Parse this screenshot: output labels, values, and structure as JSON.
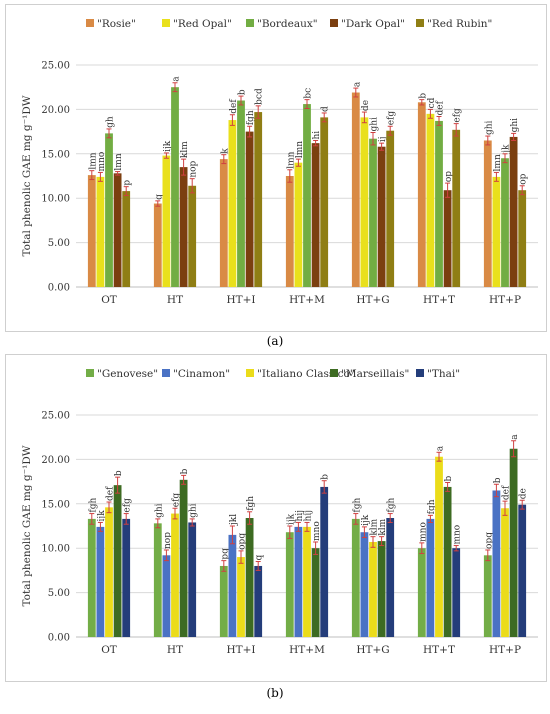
{
  "charts": [
    {
      "id": "a",
      "caption": "(a)",
      "colors": [
        "#d98a45",
        "#e9e01c",
        "#72ad43",
        "#7b3f10",
        "#8f7e14"
      ],
      "chart_data": {
        "type": "bar",
        "title": "",
        "xlabel": "",
        "ylabel": "Total phenolic GAE mg g⁻¹DW",
        "ylim": [
          0,
          25
        ],
        "yticks": [
          "0.00",
          "5.00",
          "10.00",
          "15.00",
          "20.00",
          "25.00"
        ],
        "grid": true,
        "legend_position": "top",
        "categories": [
          "OT",
          "HT",
          "HT+I",
          "HT+M",
          "HT+G",
          "HT+T",
          "HT+P"
        ],
        "series": [
          {
            "name": "\"Rosie\"",
            "values": [
              12.6,
              9.4,
              14.4,
              12.5,
              21.9,
              20.8,
              16.5
            ],
            "errors": [
              0.5,
              0.3,
              0.5,
              0.7,
              0.5,
              0.3,
              0.5
            ],
            "labels": [
              "lmn",
              "q",
              "k",
              "lmn",
              "a",
              "b",
              "ghi"
            ]
          },
          {
            "name": "\"Red Opal\"",
            "values": [
              12.4,
              14.8,
              18.8,
              14.0,
              19.1,
              19.5,
              12.4
            ],
            "errors": [
              0.5,
              0.3,
              0.6,
              0.4,
              0.6,
              0.5,
              0.5
            ],
            "labels": [
              "mno",
              "ijk",
              "def",
              "lmn",
              "de",
              "cd",
              "lmn"
            ]
          },
          {
            "name": "\"Bordeaux\"",
            "values": [
              17.3,
              22.5,
              21.0,
              20.6,
              16.7,
              18.7,
              14.5
            ],
            "errors": [
              0.5,
              0.5,
              0.5,
              0.5,
              0.7,
              0.5,
              0.5
            ],
            "labels": [
              "gh",
              "a",
              "b",
              "bc",
              "ghi",
              "def",
              "jk"
            ]
          },
          {
            "name": "\"Dark Opal\"",
            "values": [
              12.8,
              13.5,
              17.5,
              16.2,
              15.8,
              10.9,
              16.9
            ],
            "errors": [
              0.2,
              0.9,
              0.6,
              0.3,
              0.4,
              0.8,
              0.4
            ],
            "labels": [
              "lmn",
              "klm",
              "fgh",
              "hi",
              "ij",
              "op",
              "ghi"
            ]
          },
          {
            "name": "\"Red Rubin\"",
            "values": [
              10.8,
              11.4,
              19.7,
              19.1,
              17.6,
              17.7,
              10.9
            ],
            "errors": [
              0.5,
              0.8,
              0.7,
              0.5,
              0.5,
              0.7,
              0.5
            ],
            "labels": [
              "p",
              "nop",
              "bcd",
              "d",
              "efg",
              "efg",
              "op"
            ]
          }
        ]
      }
    },
    {
      "id": "b",
      "caption": "(b)",
      "colors": [
        "#73ad47",
        "#4a72c4",
        "#ebdc1a",
        "#3d6b22",
        "#243d7a"
      ],
      "chart_data": {
        "type": "bar",
        "title": "",
        "xlabel": "",
        "ylabel": "Total phenolic GAE mg g⁻¹DW",
        "ylim": [
          0,
          25
        ],
        "yticks": [
          "0.00",
          "5.00",
          "10.00",
          "15.00",
          "20.00",
          "25.00"
        ],
        "grid": true,
        "legend_position": "top",
        "categories": [
          "OT",
          "HT",
          "HT+I",
          "HT+M",
          "HT+G",
          "HT+T",
          "HT+P"
        ],
        "series": [
          {
            "name": "\"Genovese\"",
            "values": [
              13.3,
              12.8,
              8.0,
              11.8,
              13.3,
              10.0,
              9.2
            ],
            "errors": [
              0.6,
              0.5,
              0.6,
              0.7,
              0.6,
              0.6,
              0.6
            ],
            "labels": [
              "fgh",
              "ghi",
              "pq",
              "ijk",
              "fgh",
              "mno",
              "opq"
            ]
          },
          {
            "name": "\"Cinamon\"",
            "values": [
              12.4,
              9.2,
              11.5,
              12.4,
              11.8,
              13.3,
              16.5
            ],
            "errors": [
              0.5,
              0.6,
              1.0,
              0.5,
              0.6,
              0.4,
              0.7
            ],
            "labels": [
              "ijk",
              "nop",
              "jkl",
              "hij",
              "ijk",
              "fgh",
              "b"
            ]
          },
          {
            "name": "\"Italiano Classico\"",
            "values": [
              14.6,
              13.9,
              9.0,
              12.4,
              10.7,
              20.3,
              14.5
            ],
            "errors": [
              0.6,
              0.6,
              0.7,
              0.5,
              0.6,
              0.5,
              0.8
            ],
            "labels": [
              "def",
              "efg",
              "opq",
              "hij",
              "klm",
              "a",
              "def"
            ]
          },
          {
            "name": "\"Marseillais\"",
            "values": [
              17.1,
              17.7,
              13.4,
              10.0,
              10.8,
              16.9,
              21.2
            ],
            "errors": [
              0.9,
              0.5,
              0.7,
              0.7,
              0.5,
              0.5,
              0.9
            ],
            "labels": [
              "b",
              "b",
              "fgh",
              "mno",
              "klm",
              "b",
              "a"
            ]
          },
          {
            "name": "\"Thai\"",
            "values": [
              13.3,
              12.9,
              8.0,
              16.9,
              13.4,
              10.0,
              14.9
            ],
            "errors": [
              0.6,
              0.4,
              0.5,
              0.7,
              0.5,
              0.3,
              0.5
            ],
            "labels": [
              "efg",
              "ghi",
              "q",
              "b",
              "fgh",
              "mno",
              "de"
            ]
          }
        ]
      }
    }
  ]
}
